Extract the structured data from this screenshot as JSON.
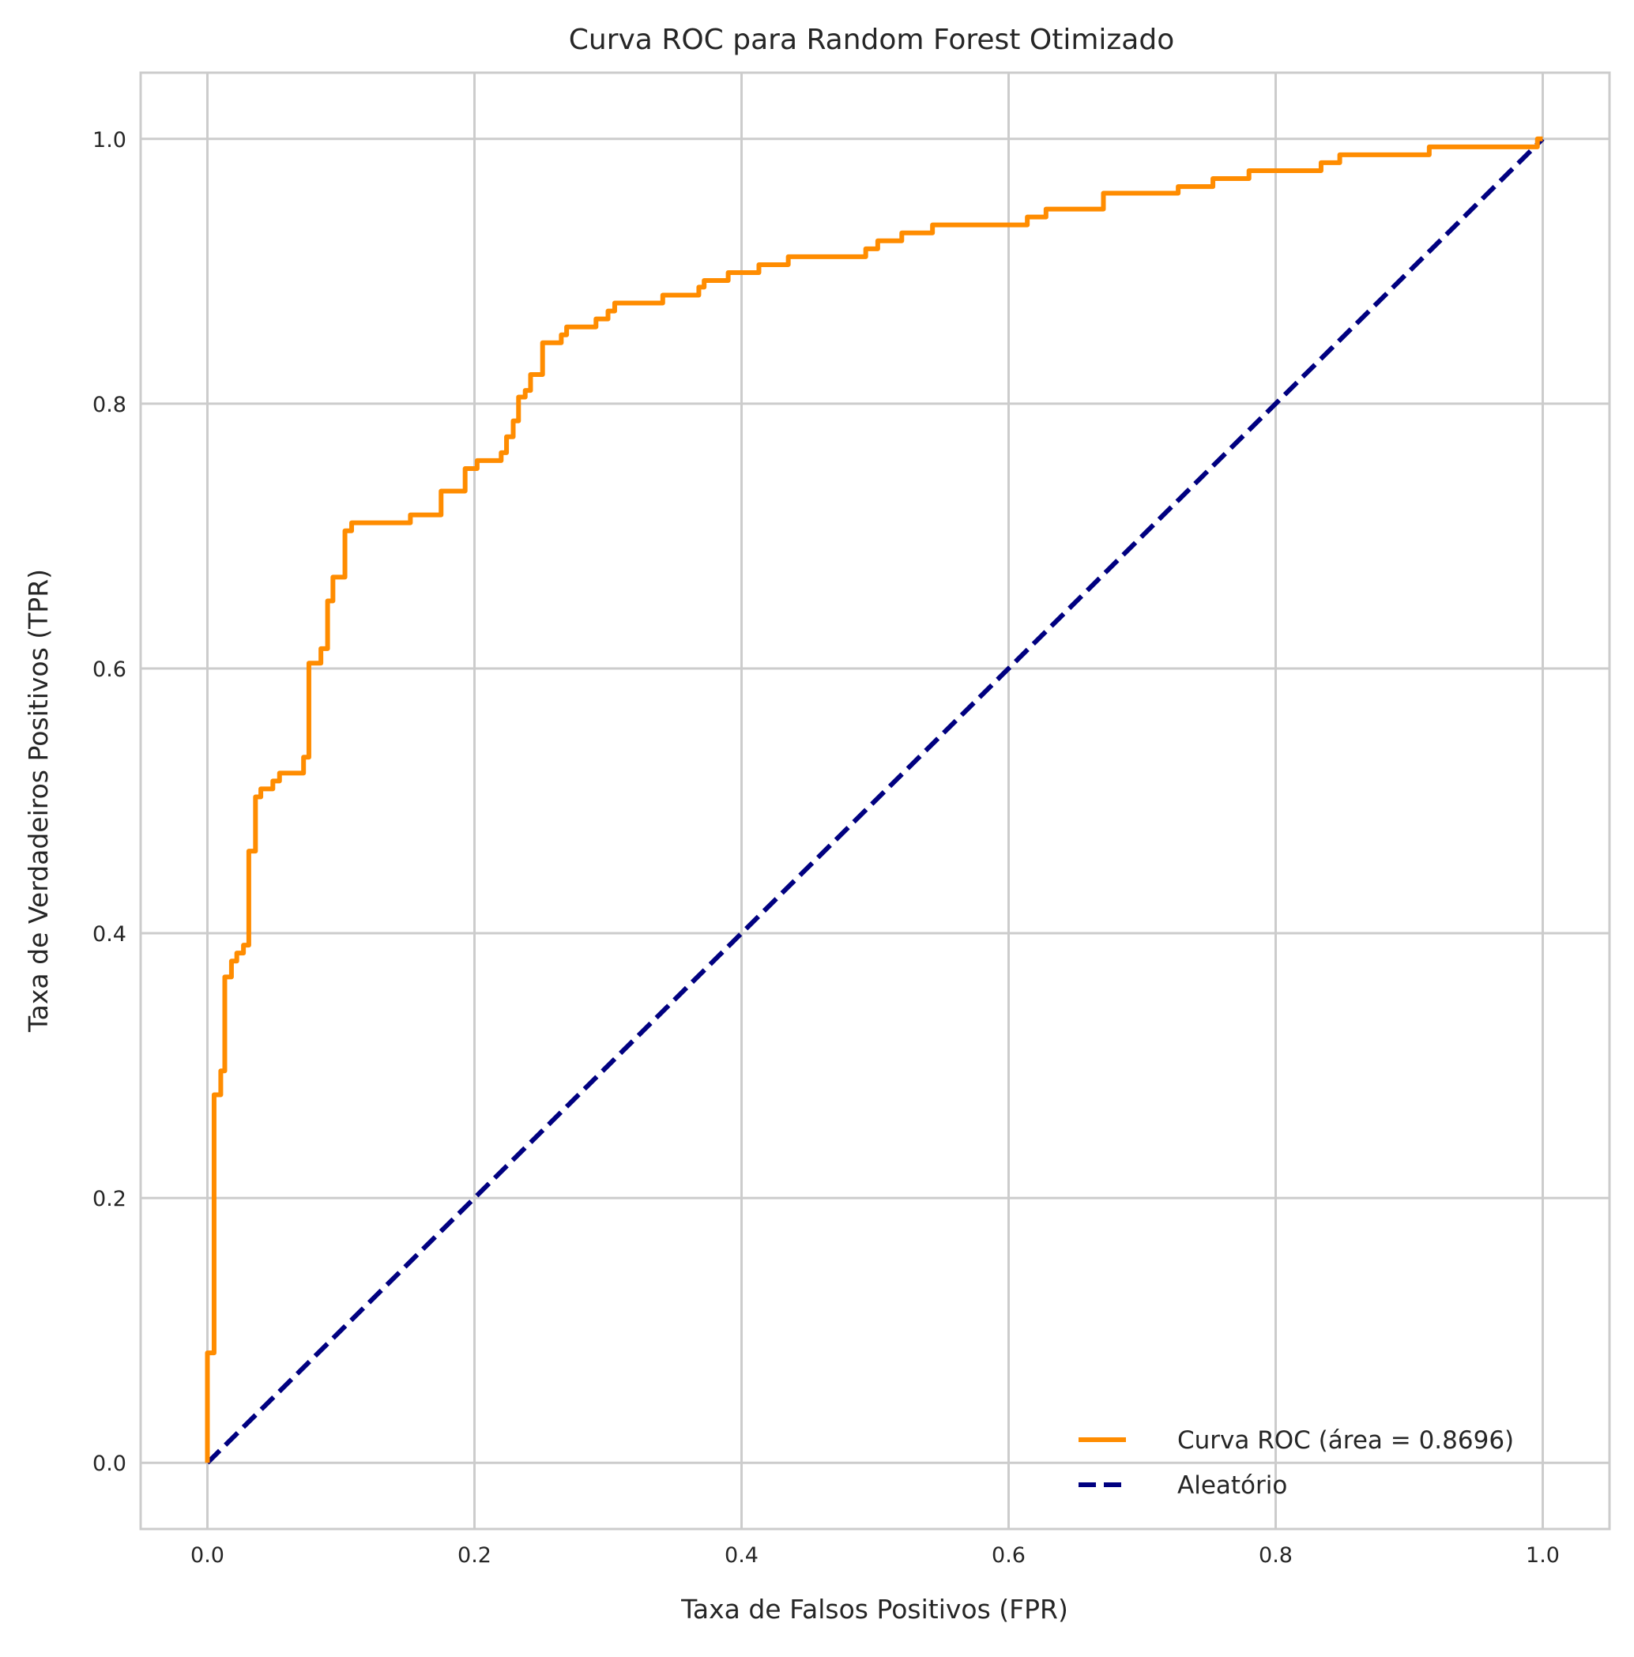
{
  "chart_data": {
    "type": "line",
    "title": "Curva ROC para Random Forest Otimizado",
    "xlabel": "Taxa de Falsos Positivos (FPR)",
    "ylabel": "Taxa de Verdadeiros Positivos (TPR)",
    "xlim": [
      -0.05,
      1.05
    ],
    "ylim": [
      -0.05,
      1.05
    ],
    "xticks": [
      "0.0",
      "0.2",
      "0.4",
      "0.6",
      "0.8",
      "1.0"
    ],
    "yticks": [
      "0.0",
      "0.2",
      "0.4",
      "0.6",
      "0.8",
      "1.0"
    ],
    "grid": true,
    "legend_position": "lower-right",
    "series": [
      {
        "name": "Curva ROC (área = 0.8696)",
        "color": "#ff8c00",
        "style": "solid",
        "x": [
          0.0,
          0.0,
          0.005,
          0.005,
          0.01,
          0.01,
          0.013,
          0.013,
          0.018,
          0.018,
          0.022,
          0.022,
          0.027,
          0.027,
          0.031,
          0.031,
          0.036,
          0.036,
          0.04,
          0.04,
          0.049,
          0.049,
          0.054,
          0.054,
          0.072,
          0.072,
          0.076,
          0.076,
          0.085,
          0.085,
          0.09,
          0.09,
          0.094,
          0.094,
          0.103,
          0.103,
          0.108,
          0.108,
          0.152,
          0.152,
          0.175,
          0.175,
          0.193,
          0.193,
          0.202,
          0.202,
          0.22,
          0.22,
          0.224,
          0.224,
          0.229,
          0.229,
          0.233,
          0.233,
          0.238,
          0.238,
          0.242,
          0.242,
          0.251,
          0.251,
          0.265,
          0.265,
          0.269,
          0.269,
          0.291,
          0.291,
          0.3,
          0.3,
          0.305,
          0.305,
          0.341,
          0.341,
          0.368,
          0.368,
          0.372,
          0.372,
          0.39,
          0.39,
          0.413,
          0.413,
          0.435,
          0.435,
          0.493,
          0.493,
          0.502,
          0.502,
          0.52,
          0.52,
          0.543,
          0.543,
          0.614,
          0.614,
          0.628,
          0.628,
          0.671,
          0.671,
          0.727,
          0.727,
          0.753,
          0.753,
          0.78,
          0.78,
          0.798,
          0.798,
          0.834,
          0.834,
          0.848,
          0.848,
          0.915,
          0.915,
          0.942,
          0.942,
          0.996,
          0.996,
          1.0
        ],
        "y": [
          0.0,
          0.083,
          0.083,
          0.278,
          0.278,
          0.296,
          0.296,
          0.367,
          0.367,
          0.379,
          0.379,
          0.385,
          0.385,
          0.391,
          0.391,
          0.462,
          0.462,
          0.503,
          0.503,
          0.509,
          0.509,
          0.515,
          0.515,
          0.521,
          0.521,
          0.533,
          0.533,
          0.604,
          0.604,
          0.615,
          0.615,
          0.651,
          0.651,
          0.669,
          0.669,
          0.704,
          0.704,
          0.71,
          0.71,
          0.716,
          0.716,
          0.734,
          0.734,
          0.751,
          0.751,
          0.757,
          0.757,
          0.763,
          0.763,
          0.775,
          0.775,
          0.787,
          0.787,
          0.805,
          0.805,
          0.81,
          0.81,
          0.822,
          0.822,
          0.846,
          0.846,
          0.852,
          0.852,
          0.858,
          0.858,
          0.864,
          0.864,
          0.87,
          0.87,
          0.876,
          0.876,
          0.882,
          0.882,
          0.888,
          0.888,
          0.893,
          0.893,
          0.899,
          0.899,
          0.905,
          0.905,
          0.911,
          0.911,
          0.917,
          0.917,
          0.923,
          0.923,
          0.929,
          0.929,
          0.935,
          0.935,
          0.941,
          0.941,
          0.947,
          0.947,
          0.959,
          0.959,
          0.964,
          0.964,
          0.97,
          0.97,
          0.976,
          0.976,
          0.976,
          0.976,
          0.982,
          0.982,
          0.988,
          0.988,
          0.994,
          0.994,
          0.994,
          0.994,
          1.0,
          1.0
        ]
      },
      {
        "name": "Aleatório",
        "color": "#000080",
        "style": "dashed",
        "x": [
          0.0,
          1.0
        ],
        "y": [
          0.0,
          1.0
        ]
      }
    ]
  }
}
